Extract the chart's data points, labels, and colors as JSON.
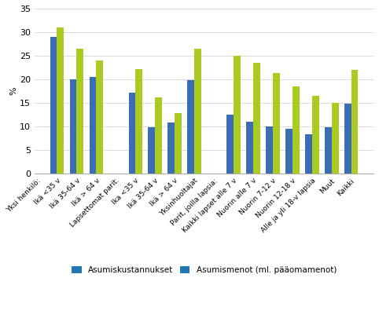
{
  "tick_labels": [
    "Yksi henkilö:",
    "Ikä <35 v",
    "Ikä 35-64 v",
    "Ikä > 64 v",
    "Lapsettomat parit:",
    "Ika <35 v",
    "Ikä 35-64 v",
    "Ikä > 64 v",
    "Yksinhuoltajat",
    "Parit, joilla lapsia:",
    "Kaikki lapset alle 7 v",
    "Nuorin alle 7 v",
    "Nuorin 7-12 v",
    "Nuorin 12-18 v",
    "Alle ja yli 18-v lapsia",
    "Muut",
    "Kaikki"
  ],
  "blue_values": [
    null,
    29.0,
    20.0,
    20.5,
    null,
    17.2,
    9.8,
    10.8,
    19.8,
    null,
    12.5,
    11.0,
    10.0,
    9.4,
    8.3,
    9.8,
    14.8
  ],
  "green_values": [
    null,
    31.0,
    26.5,
    24.0,
    null,
    22.2,
    16.1,
    12.8,
    26.5,
    null,
    25.0,
    23.5,
    21.3,
    18.5,
    16.5,
    15.0,
    22.0
  ],
  "blue_color": "#3B6DB4",
  "green_color": "#AACC22",
  "ylabel": "%",
  "ylim": [
    0,
    35
  ],
  "yticks": [
    0,
    5,
    10,
    15,
    20,
    25,
    30,
    35
  ],
  "legend_labels": [
    "Asumiskustannukset",
    "Asumismenot (ml. pääomamenot)"
  ],
  "label_rotation": 45,
  "bar_width": 0.35
}
